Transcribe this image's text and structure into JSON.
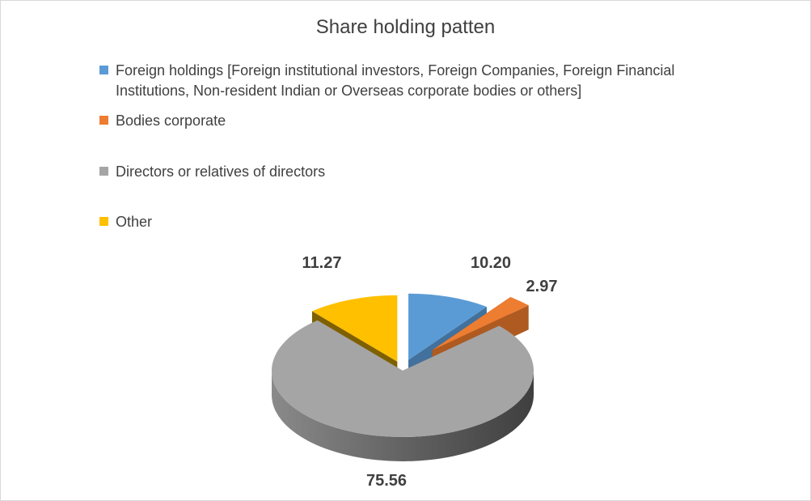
{
  "chart_data": {
    "type": "pie",
    "title": "Share holding patten",
    "legend_position": "top",
    "categories": [
      "Foreign holdings [Foreign institutional  investors, Foreign Companies, Foreign Financial Institutions, Non-resident Indian or Overseas corporate bodies or others]",
      "Bodies corporate",
      "Directors or relatives of directors",
      "Other"
    ],
    "values": [
      10.2,
      2.97,
      75.56,
      11.27
    ],
    "value_labels": [
      "10.20",
      "2.97",
      "75.56",
      "11.27"
    ],
    "colors": [
      "#5b9bd5",
      "#ed7d31",
      "#a5a5a5",
      "#ffc000"
    ]
  }
}
